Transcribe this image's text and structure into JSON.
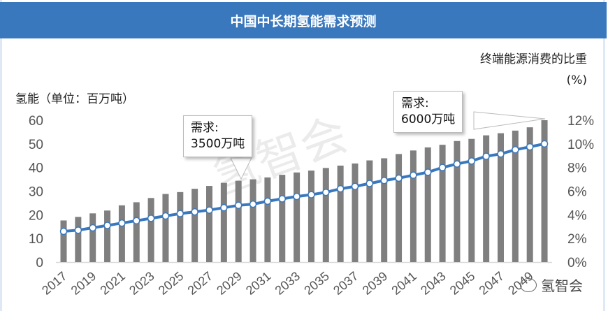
{
  "header": {
    "title": "中国中长期氢能需求预测"
  },
  "watermark": "氢智会",
  "logo": {
    "text": "氢智会",
    "icon": "wechat-icon"
  },
  "callouts": [
    {
      "line1": "需求:",
      "line2": "3500万吨"
    },
    {
      "line1": "需求:",
      "line2": "6000万吨"
    }
  ],
  "chart_data": {
    "type": "bar",
    "title": "中国中长期氢能需求预测",
    "ylabel": "氢能（单位：百万吨）",
    "y2label": [
      "终端能源消费的比重",
      "(%)"
    ],
    "ylim": [
      0,
      60
    ],
    "y2lim": [
      0,
      12
    ],
    "yticks": [
      "0",
      "10",
      "20",
      "30",
      "40",
      "50",
      "60"
    ],
    "y2ticks": [
      "0%",
      "2%",
      "4%",
      "6%",
      "8%",
      "10%",
      "12%"
    ],
    "categories": [
      2017,
      2018,
      2019,
      2020,
      2021,
      2022,
      2023,
      2024,
      2025,
      2026,
      2027,
      2028,
      2029,
      2030,
      2031,
      2032,
      2033,
      2034,
      2035,
      2036,
      2037,
      2038,
      2039,
      2040,
      2041,
      2042,
      2043,
      2044,
      2045,
      2046,
      2047,
      2048,
      2049,
      2050
    ],
    "xtick_labels": [
      "2017",
      "2019",
      "2021",
      "2023",
      "2025",
      "2027",
      "2029",
      "2031",
      "2033",
      "2035",
      "2037",
      "2039",
      "2041",
      "2043",
      "2045",
      "2047",
      "2049"
    ],
    "series": [
      {
        "name": "氢能需求（百万吨）",
        "type": "bar",
        "axis": "left",
        "color": "#7f7f7f",
        "values": [
          17.6,
          19.1,
          20.6,
          21.8,
          24.0,
          25.3,
          27.1,
          28.8,
          29.6,
          31.0,
          32.2,
          33.5,
          34.4,
          35.0,
          35.8,
          36.9,
          37.9,
          38.7,
          39.8,
          40.8,
          41.7,
          43.0,
          43.9,
          45.7,
          47.2,
          48.5,
          49.6,
          51.2,
          52.1,
          53.6,
          54.5,
          55.6,
          57.0,
          60.0
        ]
      },
      {
        "name": "终端能源消费的比重（%）",
        "type": "line",
        "axis": "right",
        "color": "#3a78bd",
        "values": [
          2.6,
          2.7,
          2.9,
          3.1,
          3.3,
          3.5,
          3.7,
          3.9,
          4.1,
          4.25,
          4.4,
          4.6,
          4.8,
          4.9,
          5.15,
          5.35,
          5.55,
          5.7,
          5.9,
          6.2,
          6.4,
          6.65,
          6.9,
          7.1,
          7.35,
          7.6,
          8.0,
          8.3,
          8.55,
          8.95,
          9.15,
          9.5,
          9.75,
          10.0
        ]
      }
    ]
  }
}
